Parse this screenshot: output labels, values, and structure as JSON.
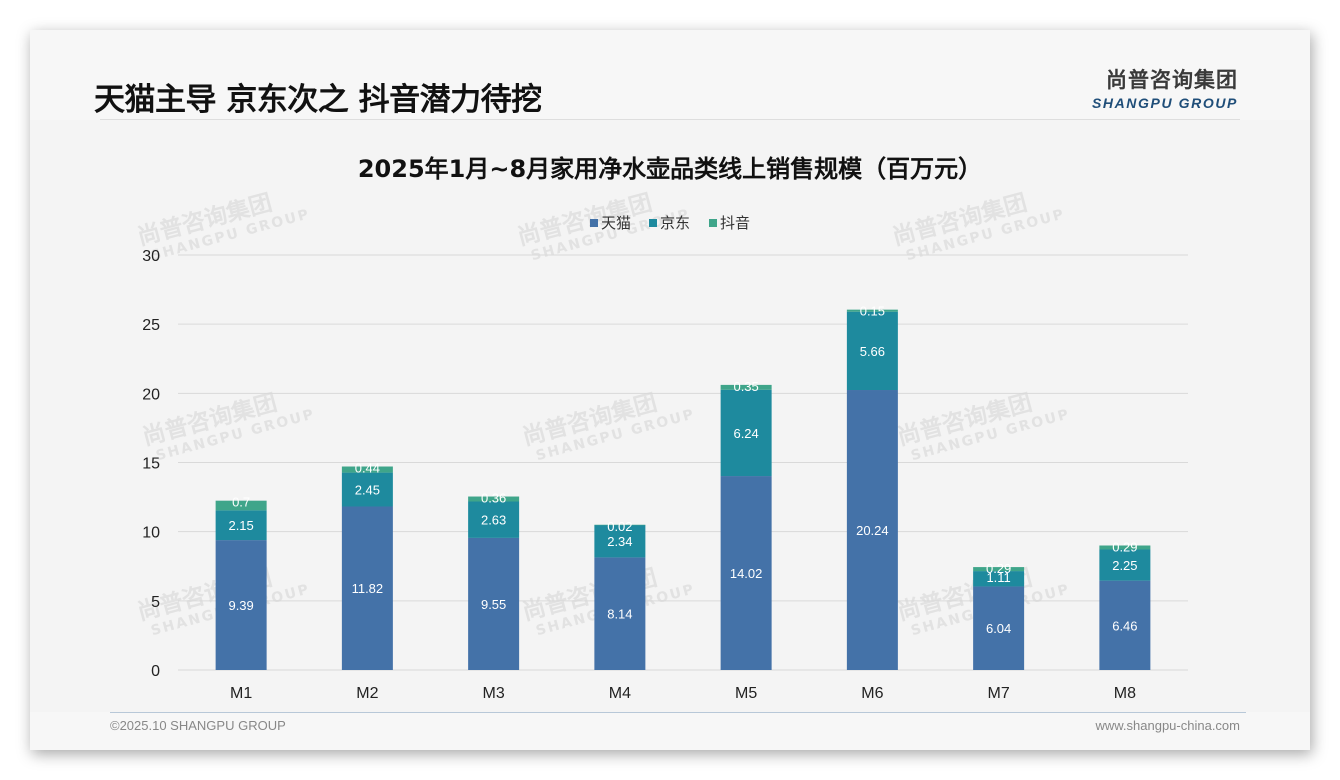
{
  "header": {
    "title": "天猫主导 京东次之 抖音潜力待挖",
    "logo_cn": "尚普咨询集团",
    "logo_en": "SHANGPU GROUP"
  },
  "footer": {
    "copyright": "©2025.10 SHANGPU GROUP",
    "website": "www.shangpu-china.com"
  },
  "watermark": {
    "cn": "尚普咨询集团",
    "en": "SHANGPU GROUP"
  },
  "chart_data": {
    "type": "bar",
    "stacked": true,
    "title": "2025年1月~8月家用净水壶品类线上销售规模（百万元）",
    "xlabel": "",
    "ylabel": "",
    "categories": [
      "M1",
      "M2",
      "M3",
      "M4",
      "M5",
      "M6",
      "M7",
      "M8"
    ],
    "series": [
      {
        "name": "天猫",
        "color": "#4472a8",
        "values": [
          9.39,
          11.82,
          9.55,
          8.14,
          14.02,
          20.24,
          6.04,
          6.46
        ]
      },
      {
        "name": "京东",
        "color": "#1e8a9e",
        "values": [
          2.15,
          2.45,
          2.63,
          2.34,
          6.24,
          5.66,
          1.11,
          2.25
        ]
      },
      {
        "name": "抖音",
        "color": "#3fa58a",
        "values": [
          0.7,
          0.44,
          0.36,
          0.02,
          0.35,
          0.15,
          0.29,
          0.29
        ]
      }
    ],
    "ylim": [
      0,
      30
    ],
    "yticks": [
      0,
      5,
      10,
      15,
      20,
      25,
      30
    ],
    "grid": true,
    "legend_position": "top-center",
    "data_labels": true
  }
}
